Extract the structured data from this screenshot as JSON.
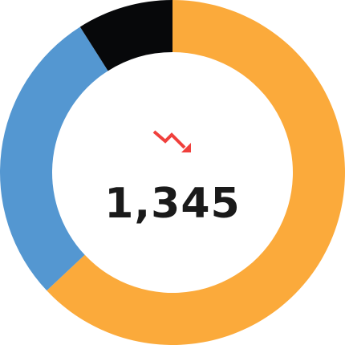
{
  "chart_data": {
    "type": "pie",
    "variant": "donut",
    "series": [
      {
        "values": [
          63,
          28,
          9
        ]
      }
    ],
    "colors": [
      "#FBAA3B",
      "#5497D1",
      "#07080A"
    ],
    "start_angle_deg": 0,
    "direction": "clockwise"
  },
  "center": {
    "value": "1,345",
    "trend": "down",
    "trend_icon": "trending-down-icon",
    "trend_color": "#F0403C"
  }
}
